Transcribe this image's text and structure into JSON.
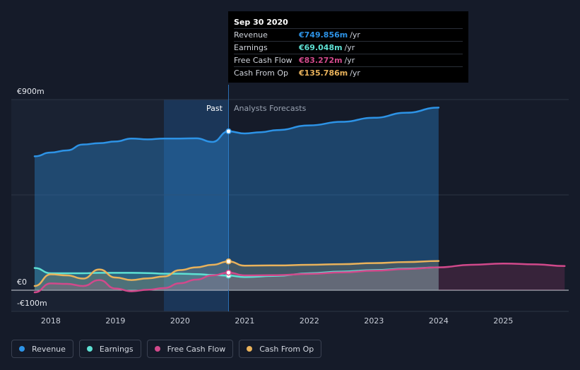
{
  "tooltip": {
    "date": "Sep 30 2020",
    "rows": [
      {
        "label": "Revenue",
        "value": "€749.856m",
        "unit": "/yr",
        "color": "#2d93e6"
      },
      {
        "label": "Earnings",
        "value": "€69.048m",
        "unit": "/yr",
        "color": "#5ee0d3"
      },
      {
        "label": "Free Cash Flow",
        "value": "€83.272m",
        "unit": "/yr",
        "color": "#d1498b"
      },
      {
        "label": "Cash From Op",
        "value": "€135.786m",
        "unit": "/yr",
        "color": "#e9b25b"
      }
    ]
  },
  "labels": {
    "past": "Past",
    "forecast": "Analysts Forecasts"
  },
  "legend": [
    {
      "label": "Revenue",
      "color": "#2d93e6"
    },
    {
      "label": "Earnings",
      "color": "#5ee0d3"
    },
    {
      "label": "Free Cash Flow",
      "color": "#d1498b"
    },
    {
      "label": "Cash From Op",
      "color": "#e9b25b"
    }
  ],
  "chart_data": {
    "type": "line",
    "ylim": [
      -100,
      900
    ],
    "yticks": [
      "€900m",
      "€0",
      "-€100m"
    ],
    "xlim": [
      2017.6,
      2025.95
    ],
    "xticks": [
      2018,
      2019,
      2020,
      2021,
      2022,
      2023,
      2024,
      2025
    ],
    "xtick_labels": [
      "2018",
      "2019",
      "2020",
      "2021",
      "2022",
      "2023",
      "2024",
      "2025"
    ],
    "past_end": 2020.75,
    "highlight_start": 2019.75,
    "series": [
      {
        "name": "Revenue",
        "color": "#2d93e6",
        "past_area": true,
        "points": [
          [
            2017.75,
            632
          ],
          [
            2018,
            650
          ],
          [
            2018.25,
            660
          ],
          [
            2018.5,
            688
          ],
          [
            2018.75,
            694
          ],
          [
            2019,
            702
          ],
          [
            2019.25,
            716
          ],
          [
            2019.5,
            712
          ],
          [
            2019.75,
            716
          ],
          [
            2020,
            716
          ],
          [
            2020.25,
            717
          ],
          [
            2020.5,
            700
          ],
          [
            2020.75,
            750
          ],
          [
            2021,
            740
          ],
          [
            2021.25,
            746
          ],
          [
            2021.5,
            756
          ],
          [
            2022,
            778
          ],
          [
            2022.5,
            795
          ],
          [
            2023,
            814
          ],
          [
            2023.5,
            838
          ],
          [
            2024,
            862
          ]
        ]
      },
      {
        "name": "Earnings",
        "color": "#5ee0d3",
        "points": [
          [
            2017.75,
            105
          ],
          [
            2018,
            80
          ],
          [
            2018.25,
            80
          ],
          [
            2018.5,
            80
          ],
          [
            2018.75,
            82
          ],
          [
            2019,
            82
          ],
          [
            2019.25,
            82
          ],
          [
            2019.5,
            81
          ],
          [
            2019.75,
            78
          ],
          [
            2020,
            78
          ],
          [
            2020.25,
            76
          ],
          [
            2020.5,
            72
          ],
          [
            2020.75,
            69
          ],
          [
            2021,
            62
          ],
          [
            2021.5,
            68
          ],
          [
            2022,
            80
          ],
          [
            2022.5,
            88
          ],
          [
            2023,
            95
          ],
          [
            2023.5,
            102
          ],
          [
            2024,
            108
          ]
        ]
      },
      {
        "name": "Free Cash Flow",
        "color": "#d1498b",
        "points": [
          [
            2017.75,
            -10
          ],
          [
            2018,
            32
          ],
          [
            2018.25,
            30
          ],
          [
            2018.5,
            20
          ],
          [
            2018.75,
            48
          ],
          [
            2019,
            8
          ],
          [
            2019.25,
            -5
          ],
          [
            2019.5,
            2
          ],
          [
            2019.75,
            10
          ],
          [
            2020,
            33
          ],
          [
            2020.25,
            50
          ],
          [
            2020.5,
            70
          ],
          [
            2020.75,
            83
          ],
          [
            2021,
            70
          ],
          [
            2021.5,
            71
          ],
          [
            2022,
            77
          ],
          [
            2022.5,
            84
          ],
          [
            2023,
            92
          ],
          [
            2023.5,
            100
          ],
          [
            2024,
            108
          ],
          [
            2024.5,
            120
          ],
          [
            2025,
            126
          ],
          [
            2025.5,
            122
          ],
          [
            2025.95,
            114
          ]
        ]
      },
      {
        "name": "Cash From Op",
        "color": "#e9b25b",
        "points": [
          [
            2017.75,
            20
          ],
          [
            2018,
            75
          ],
          [
            2018.25,
            70
          ],
          [
            2018.5,
            55
          ],
          [
            2018.75,
            98
          ],
          [
            2019,
            60
          ],
          [
            2019.25,
            48
          ],
          [
            2019.5,
            56
          ],
          [
            2019.75,
            65
          ],
          [
            2020,
            95
          ],
          [
            2020.25,
            108
          ],
          [
            2020.5,
            120
          ],
          [
            2020.75,
            136
          ],
          [
            2021,
            116
          ],
          [
            2021.5,
            117
          ],
          [
            2022,
            120
          ],
          [
            2022.5,
            123
          ],
          [
            2023,
            128
          ],
          [
            2023.5,
            133
          ],
          [
            2024,
            138
          ]
        ]
      }
    ]
  }
}
